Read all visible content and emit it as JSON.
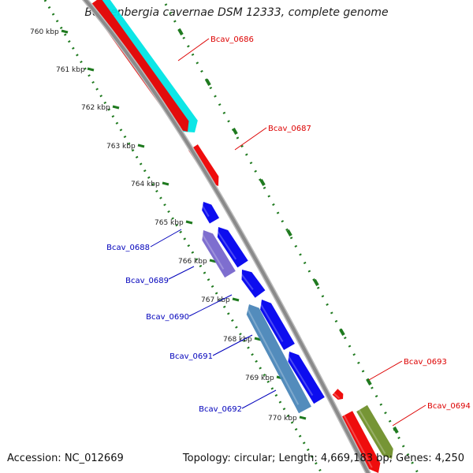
{
  "title": "Beutenbergia cavernae DSM 12333, complete genome",
  "footer": {
    "accession": "Accession: NC_012669",
    "summary": "Topology: circular; Length: 4,669,183 bp; Genes: 4,250"
  },
  "colors": {
    "backbone": "#8a8a8a",
    "ticks": "#1f7a1f",
    "plus_label": "#dd0000",
    "minus_label": "#0000bb"
  },
  "ruler": [
    "760 kbp",
    "761 kbp",
    "762 kbp",
    "763 kbp",
    "764 kbp",
    "765 kbp",
    "766 kbp",
    "767 kbp",
    "768 kbp",
    "769 kbp",
    "770 kbp"
  ],
  "genes": [
    {
      "label": "Bcav_0686",
      "strand": "plus",
      "color": "#ee0000"
    },
    {
      "label": "Bcav_0687",
      "strand": "plus",
      "color": "#ee0000"
    },
    {
      "label": "Bcav_0688",
      "strand": "minus",
      "color": "#0000ee"
    },
    {
      "label": "Bcav_0689",
      "strand": "minus",
      "color": "#7766cc"
    },
    {
      "label": "Bcav_0690",
      "strand": "minus",
      "color": "#0000ee"
    },
    {
      "label": "Bcav_0691",
      "strand": "minus",
      "color": "#4a86b8"
    },
    {
      "label": "Bcav_0692",
      "strand": "minus",
      "color": "#0000ee"
    },
    {
      "label": "Bcav_0693",
      "strand": "plus",
      "color": "#ee0000"
    },
    {
      "label": "Bcav_0694",
      "strand": "plus",
      "color": "#6f8f2a"
    }
  ]
}
